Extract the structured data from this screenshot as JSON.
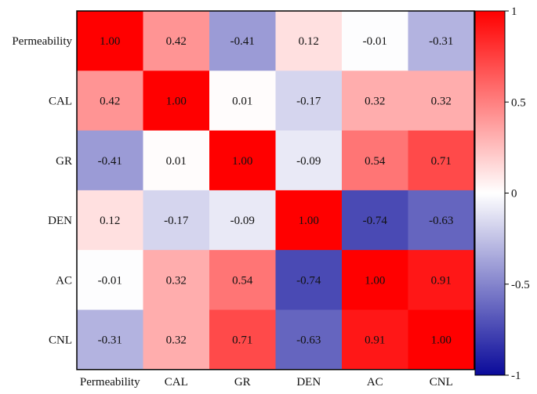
{
  "chart_data": {
    "type": "heatmap",
    "title": "",
    "row_labels": [
      "Permeability",
      "CAL",
      "GR",
      "DEN",
      "AC",
      "CNL"
    ],
    "col_labels": [
      "Permeability",
      "CAL",
      "GR",
      "DEN",
      "AC",
      "CNL"
    ],
    "values": [
      [
        1.0,
        0.42,
        -0.41,
        0.12,
        -0.01,
        -0.31
      ],
      [
        0.42,
        1.0,
        0.01,
        -0.17,
        0.32,
        0.32
      ],
      [
        -0.41,
        0.01,
        1.0,
        -0.09,
        0.54,
        0.71
      ],
      [
        0.12,
        -0.17,
        -0.09,
        1.0,
        -0.74,
        -0.63
      ],
      [
        -0.01,
        0.32,
        0.54,
        -0.74,
        1.0,
        0.91
      ],
      [
        -0.31,
        0.32,
        0.71,
        -0.63,
        0.91,
        1.0
      ]
    ],
    "value_labels": [
      [
        "1.00",
        "0.42",
        "-0.41",
        "0.12",
        "-0.01",
        "-0.31"
      ],
      [
        "0.42",
        "1.00",
        "0.01",
        "-0.17",
        "0.32",
        "0.32"
      ],
      [
        "-0.41",
        "0.01",
        "1.00",
        "-0.09",
        "0.54",
        "0.71"
      ],
      [
        "0.12",
        "-0.17",
        "-0.09",
        "1.00",
        "-0.74",
        "-0.63"
      ],
      [
        "-0.01",
        "0.32",
        "0.54",
        "-0.74",
        "1.00",
        "0.91"
      ],
      [
        "-0.31",
        "0.32",
        "0.71",
        "-0.63",
        "0.91",
        "1.00"
      ]
    ],
    "colorbar": {
      "range": [
        -1,
        1
      ],
      "ticks": [
        1,
        0.5,
        0,
        -0.5,
        -1
      ],
      "tick_labels": [
        "1",
        "0.5",
        "0",
        "-0.5",
        "-1"
      ],
      "colors": {
        "low": "#0a0a9a",
        "mid": "#ffffff",
        "high": "#ff0000"
      }
    }
  }
}
